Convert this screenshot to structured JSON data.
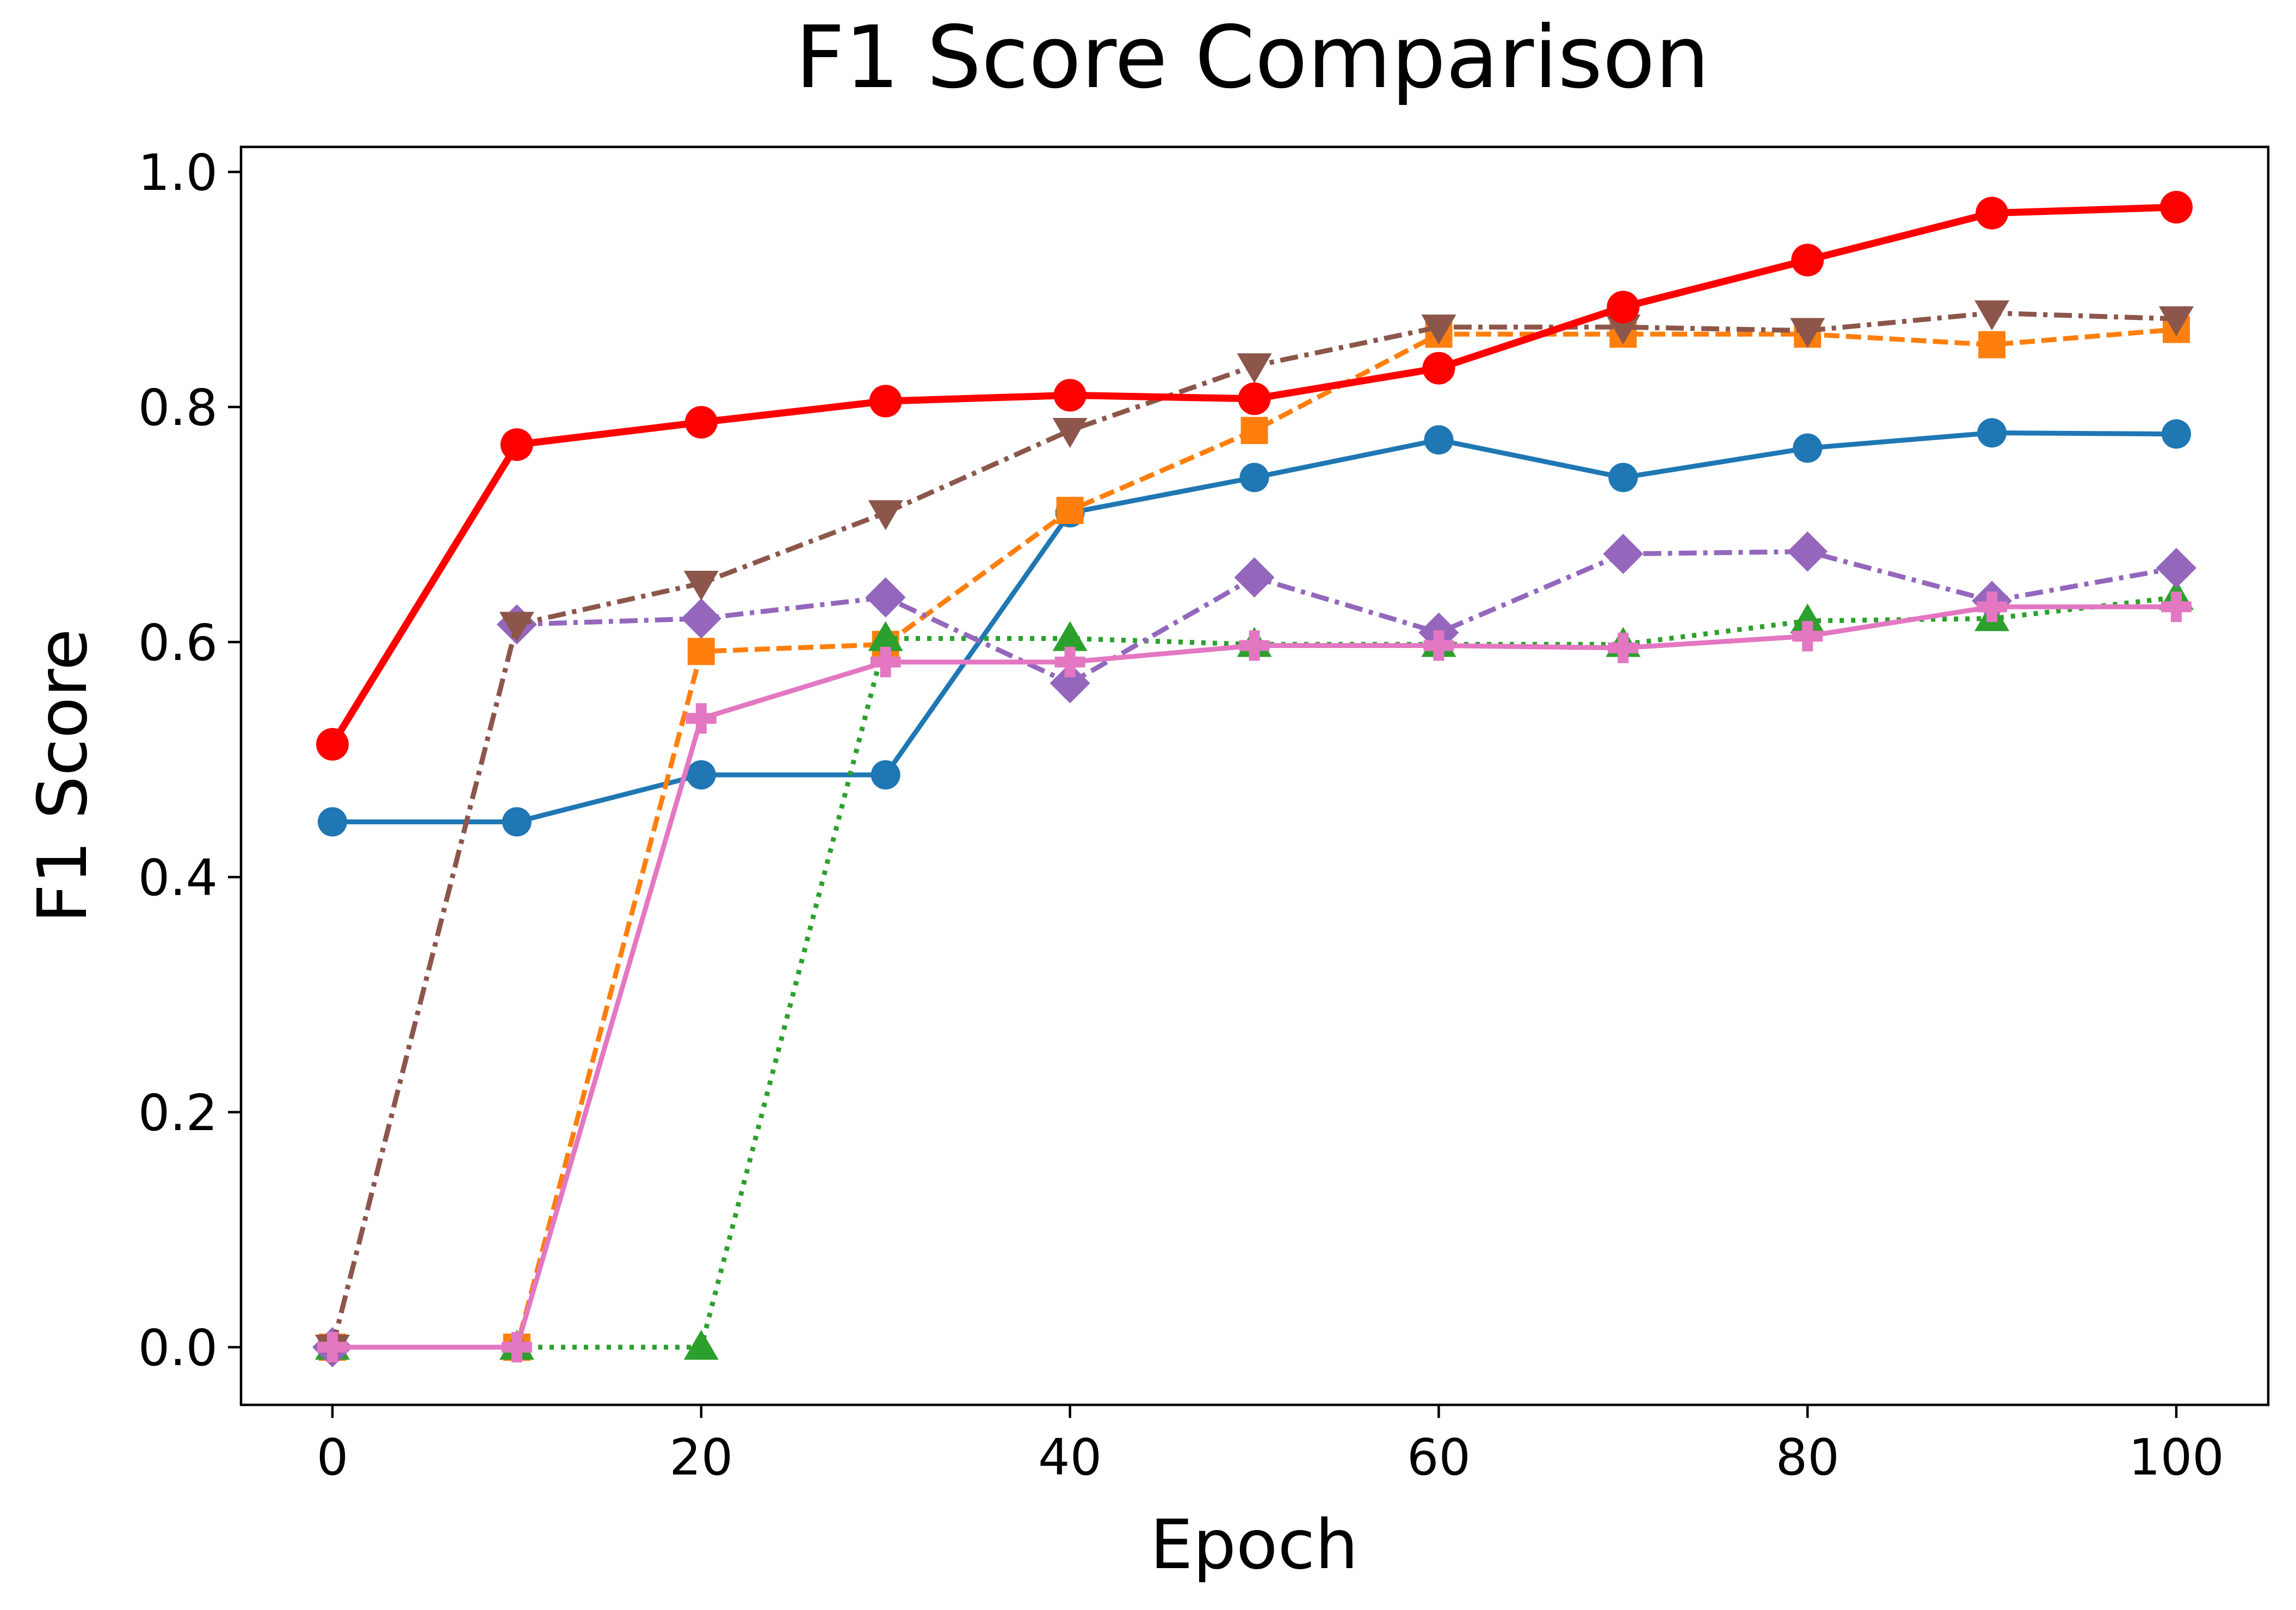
{
  "chart_data": {
    "type": "line",
    "title": "F1 Score Comparison",
    "xlabel": "Epoch",
    "ylabel": "F1 Score",
    "xlim": [
      -5,
      105
    ],
    "ylim": [
      -0.05,
      1.02
    ],
    "xticks": [
      0,
      20,
      40,
      60,
      80,
      100
    ],
    "xtick_labels": [
      "0",
      "20",
      "40",
      "60",
      "80",
      "100"
    ],
    "yticks": [
      0.0,
      0.2,
      0.4,
      0.6,
      0.8,
      1.0
    ],
    "ytick_labels": [
      "0.0",
      "0.2",
      "0.4",
      "0.6",
      "0.8",
      "1.0"
    ],
    "grid": false,
    "legend": "none",
    "x": [
      0,
      10,
      20,
      30,
      40,
      50,
      60,
      70,
      80,
      90,
      100
    ],
    "series": [
      {
        "color": "#1f77b4",
        "marker": "circle",
        "linestyle": "solid",
        "linewidth": "thin",
        "values": [
          0.447,
          0.447,
          0.487,
          0.487,
          0.71,
          0.74,
          0.772,
          0.74,
          0.765,
          0.778,
          0.777
        ]
      },
      {
        "color": "#ff7f0e",
        "marker": "square",
        "linestyle": "dashed",
        "linewidth": "thin",
        "values": [
          0.0,
          0.0,
          0.592,
          0.598,
          0.712,
          0.78,
          0.862,
          0.862,
          0.862,
          0.853,
          0.866
        ]
      },
      {
        "color": "#2ca02c",
        "marker": "triangle-up",
        "linestyle": "dotted",
        "linewidth": "thin",
        "values": [
          0.0,
          0.0,
          0.0,
          0.603,
          0.603,
          0.598,
          0.598,
          0.598,
          0.618,
          0.62,
          0.638
        ]
      },
      {
        "color": "#9467bd",
        "marker": "diamond",
        "linestyle": "dashdot",
        "linewidth": "thin",
        "values": [
          0.0,
          0.615,
          0.62,
          0.638,
          0.565,
          0.655,
          0.608,
          0.675,
          0.677,
          0.635,
          0.663
        ]
      },
      {
        "color": "#8c564b",
        "marker": "triangle-down",
        "linestyle": "dashdot",
        "linewidth": "thin",
        "values": [
          0.0,
          0.615,
          0.65,
          0.71,
          0.78,
          0.835,
          0.868,
          0.868,
          0.865,
          0.88,
          0.875
        ]
      },
      {
        "color": "#e377c2",
        "marker": "plus",
        "linestyle": "solid",
        "linewidth": "thin",
        "values": [
          0.0,
          0.0,
          0.535,
          0.583,
          0.583,
          0.597,
          0.597,
          0.595,
          0.605,
          0.63,
          0.63
        ]
      },
      {
        "color": "#ff0000",
        "marker": "circle",
        "linestyle": "solid",
        "linewidth": "thick",
        "values": [
          0.513,
          0.768,
          0.787,
          0.805,
          0.81,
          0.807,
          0.833,
          0.885,
          0.925,
          0.965,
          0.97
        ]
      }
    ]
  }
}
